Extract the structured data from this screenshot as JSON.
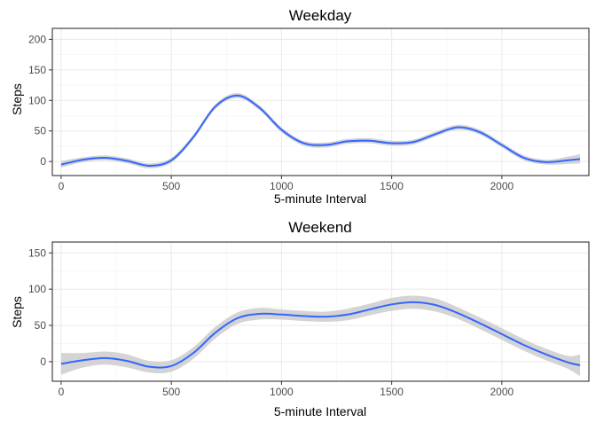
{
  "chart_data": [
    {
      "type": "line",
      "title": "Weekday",
      "xlabel": "5-minute Interval",
      "ylabel": "Steps",
      "xlim": [
        -40,
        2395
      ],
      "ylim": [
        -23,
        218
      ],
      "xticks": [
        0,
        500,
        1000,
        1500,
        2000
      ],
      "xtick_labels": [
        "0",
        "500",
        "1000",
        "1500",
        "2000"
      ],
      "yticks": [
        0,
        50,
        100,
        150,
        200
      ],
      "ytick_labels": [
        "0",
        "50",
        "100",
        "150",
        "200"
      ],
      "grid": true,
      "legend": "none",
      "series": [
        {
          "color": "#3366FF",
          "band_color": "#CCCCCC",
          "x": [
            0,
            100,
            200,
            300,
            400,
            500,
            600,
            700,
            800,
            900,
            1000,
            1100,
            1200,
            1300,
            1400,
            1500,
            1600,
            1700,
            1800,
            1900,
            2000,
            2100,
            2200,
            2300,
            2355
          ],
          "y": [
            -5,
            3,
            6,
            1,
            -7,
            2,
            40,
            90,
            108,
            88,
            52,
            30,
            27,
            33,
            34,
            30,
            32,
            45,
            56,
            48,
            27,
            6,
            -1,
            2,
            4
          ],
          "ci_low": [
            -10,
            -1,
            2,
            -3,
            -11,
            -2,
            36,
            86,
            104,
            84,
            48,
            26,
            23,
            29,
            30,
            26,
            28,
            41,
            52,
            44,
            23,
            2,
            -5,
            -4,
            -3
          ],
          "ci_high": [
            1,
            7,
            10,
            5,
            -3,
            6,
            44,
            94,
            112,
            92,
            56,
            34,
            31,
            37,
            38,
            34,
            36,
            49,
            60,
            52,
            31,
            10,
            3,
            8,
            12
          ]
        }
      ]
    },
    {
      "type": "line",
      "title": "Weekend",
      "xlabel": "5-minute Interval",
      "ylabel": "Steps",
      "xlim": [
        -40,
        2395
      ],
      "ylim": [
        -27,
        165
      ],
      "xticks": [
        0,
        500,
        1000,
        1500,
        2000
      ],
      "xtick_labels": [
        "0",
        "500",
        "1000",
        "1500",
        "2000"
      ],
      "yticks": [
        0,
        50,
        100,
        150
      ],
      "ytick_labels": [
        "0",
        "50",
        "100",
        "150"
      ],
      "grid": true,
      "legend": "none",
      "series": [
        {
          "color": "#3366FF",
          "band_color": "#CCCCCC",
          "x": [
            0,
            100,
            200,
            300,
            400,
            500,
            600,
            700,
            800,
            900,
            1000,
            1100,
            1200,
            1300,
            1400,
            1500,
            1600,
            1700,
            1800,
            1900,
            2000,
            2100,
            2200,
            2300,
            2355
          ],
          "y": [
            -3,
            2,
            5,
            1,
            -7,
            -6,
            12,
            40,
            60,
            66,
            65,
            63,
            62,
            65,
            72,
            79,
            82,
            78,
            67,
            53,
            38,
            23,
            10,
            -1,
            -5
          ],
          "ci_low": [
            -18,
            -8,
            -4,
            -8,
            -15,
            -14,
            4,
            32,
            52,
            58,
            58,
            56,
            55,
            57,
            64,
            70,
            73,
            69,
            59,
            45,
            30,
            15,
            2,
            -10,
            -20
          ],
          "ci_high": [
            12,
            12,
            14,
            10,
            1,
            2,
            20,
            48,
            68,
            74,
            72,
            70,
            69,
            73,
            80,
            88,
            91,
            87,
            75,
            61,
            46,
            31,
            18,
            8,
            10
          ]
        }
      ]
    }
  ]
}
